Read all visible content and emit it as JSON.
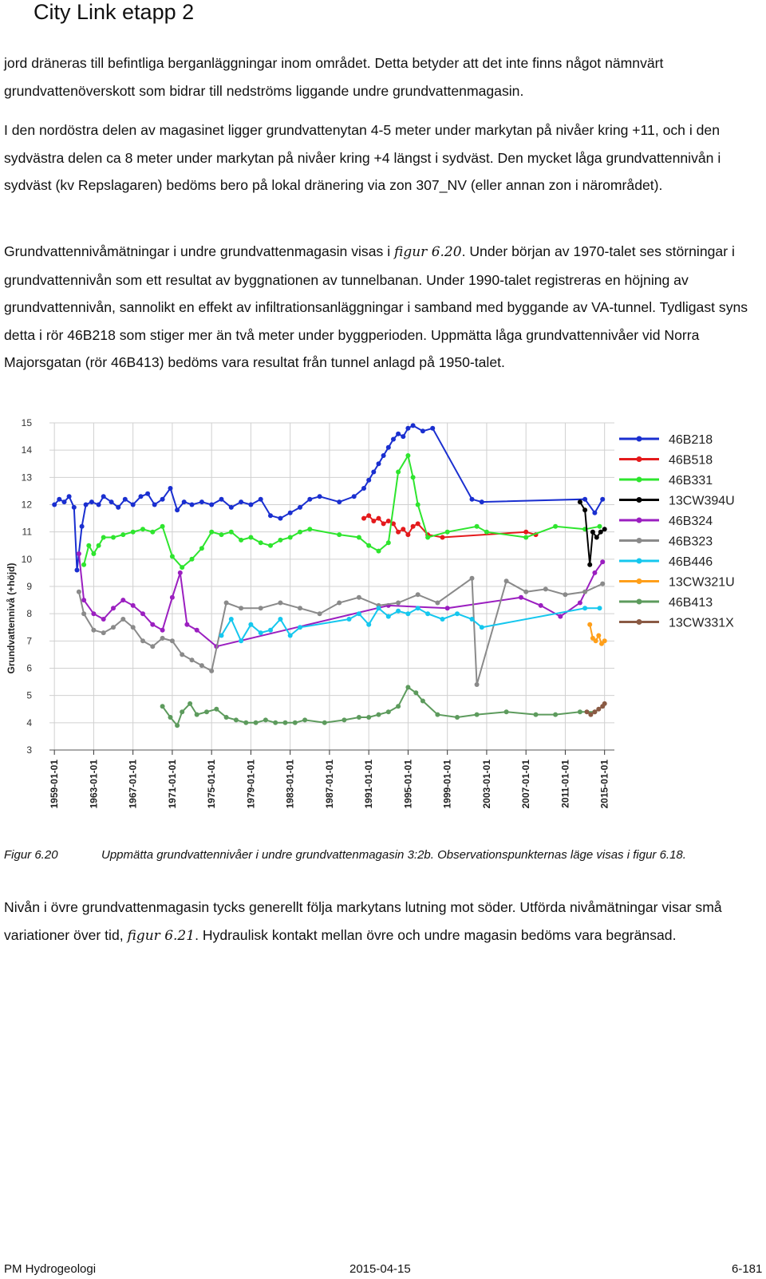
{
  "header": {
    "title": "City Link etapp 2"
  },
  "paragraphs": [
    "jord dräneras till befintliga berganläggningar inom området. Detta betyder att det inte finns något nämnvärt grundvattenöverskott som bidrar till nedströms liggande undre grundvattenmagasin.",
    "I den nordöstra delen av magasinet ligger grundvattenytan 4-5 meter under markytan på nivåer kring +11, och i den sydvästra delen ca 8 meter under markytan på nivåer kring +4 längst i sydväst. Den mycket låga grundvattennivån i sydväst (kv Repslagaren) bedöms bero på lokal dränering via zon 307_NV (eller annan zon i närområdet).",
    {
      "before": "Grundvattennivåmätningar i undre grundvattenmagasin visas i ",
      "ref": "figur 6.20",
      "after": ". Under början av 1970-talet ses störningar i grundvattennivån som ett resultat av byggnationen av tunnelbanan. Under 1990-talet registreras en höjning av grundvattennivån, sannolikt en effekt av infiltrationsanläggningar i samband med byggande av VA-tunnel. Tydligast syns detta i rör 46B218 som stiger mer än två meter under byggperioden. Uppmätta låga grundvattennivåer vid Norra Majorsgatan (rör 46B413) bedöms vara resultat från tunnel anlagd på 1950-talet."
    },
    {
      "before": "Nivån i övre grundvattenmagasin tycks generellt följa markytans lutning mot söder. Utförda nivåmätningar visar små variationer över tid, ",
      "ref": "figur 6.21",
      "after": ". Hydraulisk kontakt mellan övre och undre magasin bedöms vara begränsad."
    }
  ],
  "caption": {
    "number": "Figur 6.20",
    "text": "Uppmätta grundvattennivåer i undre grundvattenmagasin 3:2b. Observationspunkternas läge visas i figur 6.18."
  },
  "footer": {
    "left": "PM Hydrogeologi",
    "center": "2015-04-15",
    "right": "6-181"
  },
  "chart_data": {
    "type": "scatter",
    "title": "",
    "xlabel": "",
    "ylabel": "Grundvattennivå (+höjd)",
    "xlim": [
      1958.5,
      2016.0
    ],
    "ylim": [
      3,
      15
    ],
    "yticks": [
      3,
      4,
      5,
      6,
      7,
      8,
      9,
      10,
      11,
      12,
      13,
      14,
      15
    ],
    "xticks": [
      "1959-01-01",
      "1963-01-01",
      "1967-01-01",
      "1971-01-01",
      "1975-01-01",
      "1979-01-01",
      "1983-01-01",
      "1987-01-01",
      "1991-01-01",
      "1995-01-01",
      "1999-01-01",
      "2003-01-01",
      "2007-01-01",
      "2011-01-01",
      "2015-01-01"
    ],
    "grid": true,
    "legend_position": "right",
    "series": [
      {
        "name": "46B218",
        "color": "#1a2fd0",
        "points": [
          [
            1959.0,
            12.0
          ],
          [
            1959.5,
            12.2
          ],
          [
            1960.0,
            12.1
          ],
          [
            1960.5,
            12.3
          ],
          [
            1961.0,
            11.9
          ],
          [
            1961.3,
            9.6
          ],
          [
            1961.8,
            11.2
          ],
          [
            1962.2,
            12.0
          ],
          [
            1962.8,
            12.1
          ],
          [
            1963.5,
            12.0
          ],
          [
            1964.0,
            12.3
          ],
          [
            1964.8,
            12.1
          ],
          [
            1965.5,
            11.9
          ],
          [
            1966.2,
            12.2
          ],
          [
            1967.0,
            12.0
          ],
          [
            1967.8,
            12.3
          ],
          [
            1968.5,
            12.4
          ],
          [
            1969.2,
            12.0
          ],
          [
            1970.0,
            12.2
          ],
          [
            1970.8,
            12.6
          ],
          [
            1971.5,
            11.8
          ],
          [
            1972.2,
            12.1
          ],
          [
            1973.0,
            12.0
          ],
          [
            1974.0,
            12.1
          ],
          [
            1975.0,
            12.0
          ],
          [
            1976.0,
            12.2
          ],
          [
            1977.0,
            11.9
          ],
          [
            1978.0,
            12.1
          ],
          [
            1979.0,
            12.0
          ],
          [
            1980.0,
            12.2
          ],
          [
            1981.0,
            11.6
          ],
          [
            1982.0,
            11.5
          ],
          [
            1983.0,
            11.7
          ],
          [
            1984.0,
            11.9
          ],
          [
            1985.0,
            12.2
          ],
          [
            1986.0,
            12.3
          ],
          [
            1988.0,
            12.1
          ],
          [
            1989.5,
            12.3
          ],
          [
            1990.5,
            12.6
          ],
          [
            1991.0,
            12.9
          ],
          [
            1991.5,
            13.2
          ],
          [
            1992.0,
            13.5
          ],
          [
            1992.5,
            13.8
          ],
          [
            1993.0,
            14.1
          ],
          [
            1993.5,
            14.4
          ],
          [
            1994.0,
            14.6
          ],
          [
            1994.5,
            14.5
          ],
          [
            1995.0,
            14.8
          ],
          [
            1995.5,
            14.9
          ],
          [
            1996.5,
            14.7
          ],
          [
            1997.5,
            14.8
          ],
          [
            2001.5,
            12.2
          ],
          [
            2002.5,
            12.1
          ],
          [
            2013.0,
            12.2
          ],
          [
            2014.0,
            11.7
          ],
          [
            2014.8,
            12.2
          ]
        ]
      },
      {
        "name": "46B518",
        "color": "#e41a1c",
        "points": [
          [
            1990.5,
            11.5
          ],
          [
            1991.0,
            11.6
          ],
          [
            1991.5,
            11.4
          ],
          [
            1992.0,
            11.5
          ],
          [
            1992.5,
            11.3
          ],
          [
            1993.0,
            11.4
          ],
          [
            1993.5,
            11.3
          ],
          [
            1994.0,
            11.0
          ],
          [
            1994.5,
            11.1
          ],
          [
            1995.0,
            10.9
          ],
          [
            1995.5,
            11.2
          ],
          [
            1996.0,
            11.3
          ],
          [
            1997.0,
            10.9
          ],
          [
            1998.5,
            10.8
          ],
          [
            2007.0,
            11.0
          ],
          [
            2008.0,
            10.9
          ]
        ]
      },
      {
        "name": "46B331",
        "color": "#2ee52e",
        "points": [
          [
            1962.0,
            9.8
          ],
          [
            1962.5,
            10.5
          ],
          [
            1963.0,
            10.2
          ],
          [
            1963.5,
            10.5
          ],
          [
            1964.0,
            10.8
          ],
          [
            1965.0,
            10.8
          ],
          [
            1966.0,
            10.9
          ],
          [
            1967.0,
            11.0
          ],
          [
            1968.0,
            11.1
          ],
          [
            1969.0,
            11.0
          ],
          [
            1970.0,
            11.2
          ],
          [
            1971.0,
            10.1
          ],
          [
            1972.0,
            9.7
          ],
          [
            1973.0,
            10.0
          ],
          [
            1974.0,
            10.4
          ],
          [
            1975.0,
            11.0
          ],
          [
            1976.0,
            10.9
          ],
          [
            1977.0,
            11.0
          ],
          [
            1978.0,
            10.7
          ],
          [
            1979.0,
            10.8
          ],
          [
            1980.0,
            10.6
          ],
          [
            1981.0,
            10.5
          ],
          [
            1982.0,
            10.7
          ],
          [
            1983.0,
            10.8
          ],
          [
            1984.0,
            11.0
          ],
          [
            1985.0,
            11.1
          ],
          [
            1988.0,
            10.9
          ],
          [
            1990.0,
            10.8
          ],
          [
            1991.0,
            10.5
          ],
          [
            1992.0,
            10.3
          ],
          [
            1993.0,
            10.6
          ],
          [
            1994.0,
            13.2
          ],
          [
            1995.0,
            13.8
          ],
          [
            1995.5,
            13.0
          ],
          [
            1996.0,
            12.0
          ],
          [
            1997.0,
            10.8
          ],
          [
            1999.0,
            11.0
          ],
          [
            2002.0,
            11.2
          ],
          [
            2003.0,
            11.0
          ],
          [
            2007.0,
            10.8
          ],
          [
            2010.0,
            11.2
          ],
          [
            2013.0,
            11.1
          ],
          [
            2014.5,
            11.2
          ]
        ]
      },
      {
        "name": "13CW394U",
        "color": "#000000",
        "points": [
          [
            2012.5,
            12.1
          ],
          [
            2013.0,
            11.8
          ],
          [
            2013.5,
            9.8
          ],
          [
            2013.8,
            11.0
          ],
          [
            2014.2,
            10.8
          ],
          [
            2014.6,
            11.0
          ],
          [
            2015.0,
            11.1
          ]
        ]
      },
      {
        "name": "46B324",
        "color": "#9b1fc0",
        "points": [
          [
            1961.5,
            10.2
          ],
          [
            1962.0,
            8.5
          ],
          [
            1963.0,
            8.0
          ],
          [
            1964.0,
            7.8
          ],
          [
            1965.0,
            8.2
          ],
          [
            1966.0,
            8.5
          ],
          [
            1967.0,
            8.3
          ],
          [
            1968.0,
            8.0
          ],
          [
            1969.0,
            7.6
          ],
          [
            1970.0,
            7.4
          ],
          [
            1971.0,
            8.6
          ],
          [
            1971.8,
            9.5
          ],
          [
            1972.5,
            7.6
          ],
          [
            1973.5,
            7.4
          ],
          [
            1975.5,
            6.8
          ],
          [
            1993.0,
            8.3
          ],
          [
            1999.0,
            8.2
          ],
          [
            2006.5,
            8.6
          ],
          [
            2008.5,
            8.3
          ],
          [
            2010.5,
            7.9
          ],
          [
            2012.5,
            8.4
          ],
          [
            2014.0,
            9.5
          ],
          [
            2014.8,
            9.9
          ]
        ]
      },
      {
        "name": "46B323",
        "color": "#8a8a8a",
        "points": [
          [
            1961.5,
            8.8
          ],
          [
            1962.0,
            8.0
          ],
          [
            1963.0,
            7.4
          ],
          [
            1964.0,
            7.3
          ],
          [
            1965.0,
            7.5
          ],
          [
            1966.0,
            7.8
          ],
          [
            1967.0,
            7.5
          ],
          [
            1968.0,
            7.0
          ],
          [
            1969.0,
            6.8
          ],
          [
            1970.0,
            7.1
          ],
          [
            1971.0,
            7.0
          ],
          [
            1972.0,
            6.5
          ],
          [
            1973.0,
            6.3
          ],
          [
            1974.0,
            6.1
          ],
          [
            1975.0,
            5.9
          ],
          [
            1976.5,
            8.4
          ],
          [
            1978.0,
            8.2
          ],
          [
            1980.0,
            8.2
          ],
          [
            1982.0,
            8.4
          ],
          [
            1984.0,
            8.2
          ],
          [
            1986.0,
            8.0
          ],
          [
            1988.0,
            8.4
          ],
          [
            1990.0,
            8.6
          ],
          [
            1992.0,
            8.3
          ],
          [
            1994.0,
            8.4
          ],
          [
            1996.0,
            8.7
          ],
          [
            1998.0,
            8.4
          ],
          [
            2001.5,
            9.3
          ],
          [
            2002.0,
            5.4
          ],
          [
            2005.0,
            9.2
          ],
          [
            2007.0,
            8.8
          ],
          [
            2009.0,
            8.9
          ],
          [
            2011.0,
            8.7
          ],
          [
            2013.0,
            8.8
          ],
          [
            2014.8,
            9.1
          ]
        ]
      },
      {
        "name": "46B446",
        "color": "#15c7ee",
        "points": [
          [
            1976.0,
            7.2
          ],
          [
            1977.0,
            7.8
          ],
          [
            1978.0,
            7.0
          ],
          [
            1979.0,
            7.6
          ],
          [
            1980.0,
            7.3
          ],
          [
            1981.0,
            7.4
          ],
          [
            1982.0,
            7.8
          ],
          [
            1983.0,
            7.2
          ],
          [
            1984.0,
            7.5
          ],
          [
            1989.0,
            7.8
          ],
          [
            1990.0,
            8.0
          ],
          [
            1991.0,
            7.6
          ],
          [
            1992.0,
            8.2
          ],
          [
            1993.0,
            7.9
          ],
          [
            1994.0,
            8.1
          ],
          [
            1995.0,
            8.0
          ],
          [
            1996.0,
            8.2
          ],
          [
            1997.0,
            8.0
          ],
          [
            1998.5,
            7.8
          ],
          [
            2000.0,
            8.0
          ],
          [
            2001.5,
            7.8
          ],
          [
            2002.5,
            7.5
          ],
          [
            2013.0,
            8.2
          ],
          [
            2014.5,
            8.2
          ]
        ]
      },
      {
        "name": "13CW321U",
        "color": "#ff9f1a",
        "points": [
          [
            2013.5,
            7.6
          ],
          [
            2013.8,
            7.1
          ],
          [
            2014.1,
            7.0
          ],
          [
            2014.4,
            7.2
          ],
          [
            2014.7,
            6.9
          ],
          [
            2015.0,
            7.0
          ]
        ]
      },
      {
        "name": "46B413",
        "color": "#5d9b5d",
        "points": [
          [
            1970.0,
            4.6
          ],
          [
            1970.8,
            4.2
          ],
          [
            1971.5,
            3.9
          ],
          [
            1972.0,
            4.4
          ],
          [
            1972.8,
            4.7
          ],
          [
            1973.5,
            4.3
          ],
          [
            1974.5,
            4.4
          ],
          [
            1975.5,
            4.5
          ],
          [
            1976.5,
            4.2
          ],
          [
            1977.5,
            4.1
          ],
          [
            1978.5,
            4.0
          ],
          [
            1979.5,
            4.0
          ],
          [
            1980.5,
            4.1
          ],
          [
            1981.5,
            4.0
          ],
          [
            1982.5,
            4.0
          ],
          [
            1983.5,
            4.0
          ],
          [
            1984.5,
            4.1
          ],
          [
            1986.5,
            4.0
          ],
          [
            1988.5,
            4.1
          ],
          [
            1990.0,
            4.2
          ],
          [
            1991.0,
            4.2
          ],
          [
            1992.0,
            4.3
          ],
          [
            1993.0,
            4.4
          ],
          [
            1994.0,
            4.6
          ],
          [
            1995.0,
            5.3
          ],
          [
            1995.8,
            5.1
          ],
          [
            1996.5,
            4.8
          ],
          [
            1998.0,
            4.3
          ],
          [
            2000.0,
            4.2
          ],
          [
            2002.0,
            4.3
          ],
          [
            2005.0,
            4.4
          ],
          [
            2008.0,
            4.3
          ],
          [
            2010.0,
            4.3
          ],
          [
            2012.5,
            4.4
          ],
          [
            2014.0,
            4.4
          ]
        ]
      },
      {
        "name": "13CW331X",
        "color": "#8a5a44",
        "points": [
          [
            2013.2,
            4.4
          ],
          [
            2013.6,
            4.3
          ],
          [
            2014.0,
            4.4
          ],
          [
            2014.4,
            4.5
          ],
          [
            2014.8,
            4.6
          ],
          [
            2015.0,
            4.7
          ]
        ]
      }
    ]
  }
}
